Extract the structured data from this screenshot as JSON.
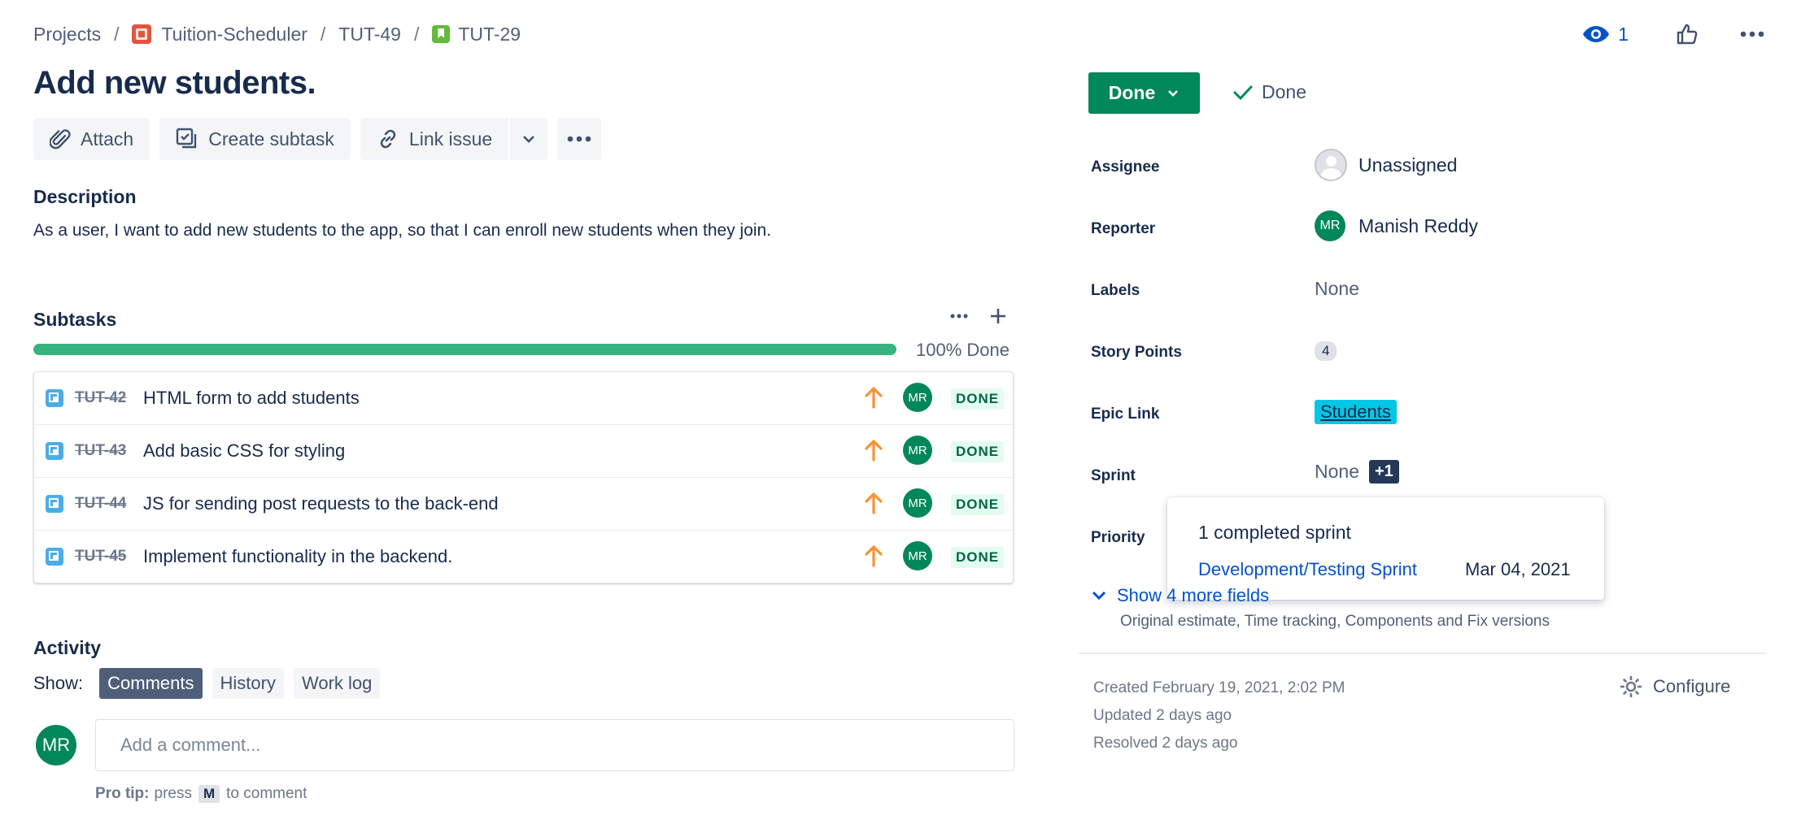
{
  "breadcrumb": {
    "projects": "Projects",
    "project": "Tuition-Scheduler",
    "epic": "TUT-49",
    "issue": "TUT-29",
    "separator": "/"
  },
  "header": {
    "watch_count": "1"
  },
  "issue": {
    "title": "Add new students."
  },
  "toolbar": {
    "attach": "Attach",
    "create_subtask": "Create subtask",
    "link_issue": "Link issue"
  },
  "description": {
    "heading": "Description",
    "text": "As a user, I want to add new students to the app, so that I can enroll new students when they join."
  },
  "subtasks": {
    "heading": "Subtasks",
    "progress_label": "100% Done",
    "progress_fraction": 1.0,
    "items": [
      {
        "key": "TUT-42",
        "summary": "HTML form to add students",
        "assignee_initials": "MR",
        "status": "DONE"
      },
      {
        "key": "TUT-43",
        "summary": "Add basic CSS for styling",
        "assignee_initials": "MR",
        "status": "DONE"
      },
      {
        "key": "TUT-44",
        "summary": "JS for sending post requests to the back-end",
        "assignee_initials": "MR",
        "status": "DONE"
      },
      {
        "key": "TUT-45",
        "summary": "Implement functionality in the backend.",
        "assignee_initials": "MR",
        "status": "DONE"
      }
    ]
  },
  "activity": {
    "heading": "Activity",
    "show_label": "Show:",
    "tabs": [
      "Comments",
      "History",
      "Work log"
    ],
    "user_initials": "MR",
    "comment_placeholder": "Add a comment...",
    "pro_tip_label": "Pro tip:",
    "pro_tip_pre": "press",
    "pro_tip_key": "M",
    "pro_tip_post": "to comment"
  },
  "status": {
    "button": "Done",
    "resolution": "Done"
  },
  "fields": {
    "assignee_label": "Assignee",
    "assignee_value": "Unassigned",
    "reporter_label": "Reporter",
    "reporter_initials": "MR",
    "reporter_value": "Manish Reddy",
    "labels_label": "Labels",
    "labels_value": "None",
    "story_points_label": "Story Points",
    "story_points_value": "4",
    "epic_link_label": "Epic Link",
    "epic_link_value": "Students",
    "sprint_label": "Sprint",
    "sprint_value": "None",
    "sprint_extra": "+1",
    "priority_label": "Priority"
  },
  "sprint_popup": {
    "heading": "1 completed sprint",
    "sprint_name": "Development/Testing Sprint",
    "sprint_date": "Mar 04, 2021"
  },
  "more_fields": {
    "label": "Show 4 more fields",
    "sub": "Original estimate, Time tracking, Components and Fix versions"
  },
  "meta": {
    "created": "Created February 19, 2021, 2:02 PM",
    "updated": "Updated 2 days ago",
    "resolved": "Resolved 2 days ago",
    "configure": "Configure"
  },
  "colors": {
    "done_green": "#00875A",
    "progress_green": "#36B37E",
    "link_blue": "#0052CC",
    "epic_cyan": "#00C7E6",
    "priority_orange": "#F79232"
  }
}
